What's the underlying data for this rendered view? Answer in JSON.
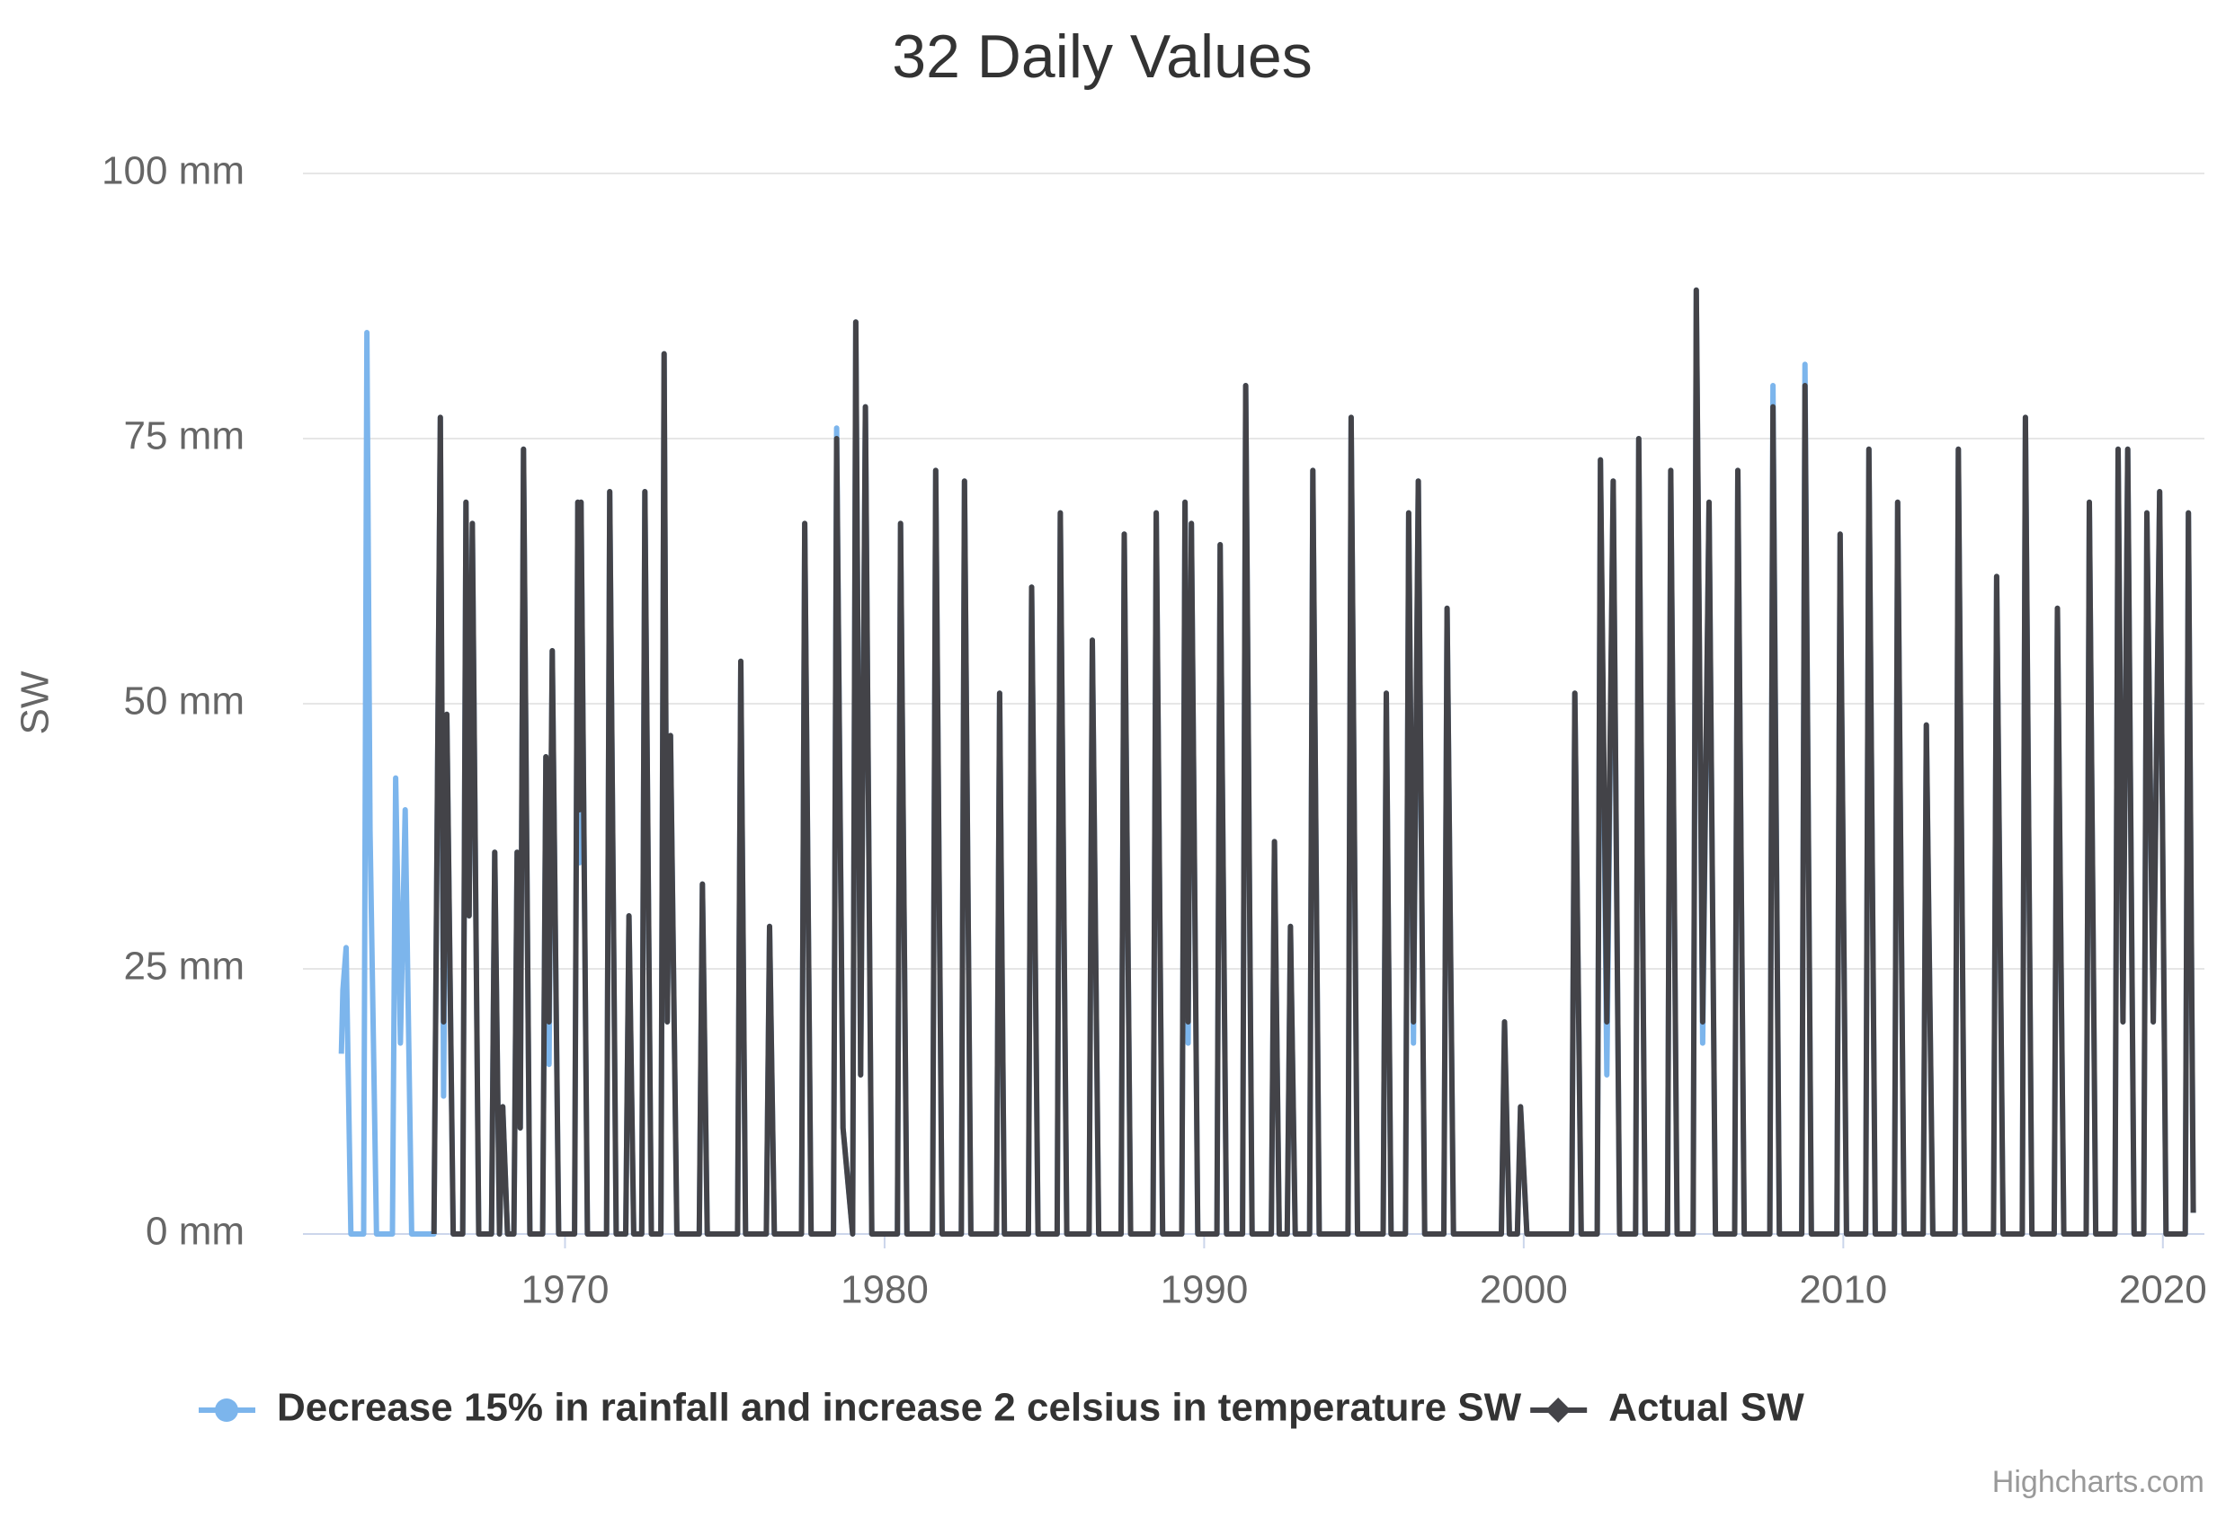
{
  "chart_data": {
    "type": "line",
    "title": "32 Daily Values",
    "y_axis_label": "SW",
    "credits": "Highcharts.com",
    "grid": true,
    "xlim": [
      1961.8,
      2021.3
    ],
    "xticks": [
      1970,
      1980,
      1990,
      2000,
      2010,
      2020
    ],
    "ylim": [
      0,
      100
    ],
    "yticks": [
      {
        "value": 0,
        "label": "0 mm"
      },
      {
        "value": 25,
        "label": "25 mm"
      },
      {
        "value": 50,
        "label": "50 mm"
      },
      {
        "value": 75,
        "label": "75 mm"
      },
      {
        "value": 100,
        "label": "100 mm"
      }
    ],
    "x": [
      1963.0,
      1963.05,
      1963.15,
      1963.3,
      1963.7,
      1963.8,
      1963.9,
      1964.1,
      1964.6,
      1964.7,
      1964.85,
      1965.0,
      1965.2,
      1965.9,
      1966.1,
      1966.2,
      1966.3,
      1966.5,
      1966.8,
      1966.9,
      1967.0,
      1967.1,
      1967.3,
      1967.7,
      1967.8,
      1967.95,
      1968.05,
      1968.2,
      1968.4,
      1968.5,
      1968.6,
      1968.7,
      1968.9,
      1969.3,
      1969.4,
      1969.5,
      1969.6,
      1969.8,
      1970.3,
      1970.4,
      1970.45,
      1970.5,
      1970.7,
      1971.3,
      1971.4,
      1971.6,
      1971.9,
      1972.0,
      1972.15,
      1972.4,
      1972.5,
      1972.7,
      1973.0,
      1973.1,
      1973.2,
      1973.3,
      1973.5,
      1974.2,
      1974.3,
      1974.45,
      1975.4,
      1975.5,
      1975.65,
      1976.3,
      1976.4,
      1976.55,
      1977.4,
      1977.5,
      1977.7,
      1978.4,
      1978.5,
      1978.7,
      1979.0,
      1979.1,
      1979.25,
      1979.4,
      1979.6,
      1980.4,
      1980.5,
      1980.7,
      1981.5,
      1981.6,
      1981.8,
      1982.4,
      1982.5,
      1982.7,
      1983.5,
      1983.6,
      1983.75,
      1984.5,
      1984.6,
      1984.8,
      1985.4,
      1985.5,
      1985.7,
      1986.4,
      1986.5,
      1986.7,
      1987.4,
      1987.5,
      1987.7,
      1988.4,
      1988.5,
      1988.7,
      1989.3,
      1989.4,
      1989.5,
      1989.6,
      1989.8,
      1990.4,
      1990.5,
      1990.7,
      1991.2,
      1991.3,
      1991.5,
      1992.1,
      1992.2,
      1992.35,
      1992.6,
      1992.7,
      1992.85,
      1993.3,
      1993.4,
      1993.6,
      1994.5,
      1994.6,
      1994.8,
      1995.6,
      1995.7,
      1995.85,
      1996.3,
      1996.4,
      1996.55,
      1996.7,
      1996.9,
      1997.5,
      1997.6,
      1997.8,
      1999.3,
      1999.4,
      1999.55,
      1999.8,
      1999.9,
      2000.1,
      2001.5,
      2001.6,
      2001.8,
      2002.3,
      2002.4,
      2002.6,
      2002.8,
      2003.0,
      2003.5,
      2003.6,
      2003.8,
      2004.5,
      2004.6,
      2004.8,
      2005.3,
      2005.4,
      2005.6,
      2005.8,
      2006.0,
      2006.6,
      2006.7,
      2006.9,
      2007.7,
      2007.8,
      2008.0,
      2008.7,
      2008.8,
      2009.0,
      2009.8,
      2009.9,
      2010.1,
      2010.7,
      2010.8,
      2011.0,
      2011.6,
      2011.7,
      2011.9,
      2012.5,
      2012.6,
      2012.8,
      2013.5,
      2013.6,
      2013.8,
      2014.7,
      2014.8,
      2015.0,
      2015.6,
      2015.7,
      2015.9,
      2016.6,
      2016.7,
      2016.9,
      2017.6,
      2017.7,
      2017.9,
      2018.5,
      2018.6,
      2018.75,
      2018.9,
      2019.1,
      2019.4,
      2019.5,
      2019.7,
      2019.9,
      2020.1,
      2020.7,
      2020.8,
      2020.95
    ],
    "series": [
      {
        "name": "Decrease 15% in rainfall and increase 2 celsius in temperature SW",
        "color": "#7cb5ec",
        "marker": "circle",
        "values": [
          17,
          23,
          27,
          0,
          0,
          85,
          38,
          0,
          0,
          43,
          18,
          40,
          0,
          0,
          77,
          13,
          49,
          0,
          0,
          69,
          30,
          67,
          0,
          0,
          36,
          0,
          12,
          0,
          0,
          36,
          10,
          74,
          0,
          0,
          45,
          16,
          55,
          0,
          0,
          69,
          35,
          69,
          0,
          0,
          70,
          0,
          0,
          30,
          0,
          0,
          70,
          0,
          0,
          83,
          20,
          47,
          0,
          0,
          33,
          0,
          0,
          54,
          0,
          0,
          29,
          0,
          0,
          67,
          0,
          0,
          76,
          10,
          0,
          86,
          15,
          78,
          0,
          0,
          67,
          0,
          0,
          72,
          0,
          0,
          71,
          0,
          0,
          51,
          0,
          0,
          61,
          0,
          0,
          68,
          0,
          0,
          56,
          0,
          0,
          66,
          0,
          0,
          68,
          0,
          0,
          69,
          18,
          67,
          0,
          0,
          65,
          0,
          0,
          80,
          0,
          0,
          37,
          0,
          0,
          29,
          0,
          0,
          72,
          0,
          0,
          77,
          0,
          0,
          51,
          0,
          0,
          68,
          18,
          71,
          0,
          0,
          59,
          0,
          0,
          20,
          0,
          0,
          12,
          0,
          0,
          51,
          0,
          0,
          73,
          15,
          71,
          0,
          0,
          75,
          0,
          0,
          72,
          0,
          0,
          89,
          18,
          69,
          0,
          0,
          72,
          0,
          0,
          80,
          0,
          0,
          82,
          0,
          0,
          66,
          0,
          0,
          74,
          0,
          0,
          69,
          0,
          0,
          48,
          0,
          0,
          74,
          0,
          0,
          62,
          0,
          0,
          77,
          0,
          0,
          59,
          0,
          0,
          69,
          0,
          0,
          74,
          20,
          74,
          0,
          0,
          68,
          20,
          70,
          0,
          0,
          68,
          2
        ]
      },
      {
        "name": "Actual SW",
        "color": "#434348",
        "marker": "diamond",
        "values": [
          null,
          null,
          null,
          null,
          null,
          null,
          null,
          null,
          null,
          null,
          null,
          null,
          null,
          0,
          77,
          20,
          49,
          0,
          0,
          69,
          30,
          67,
          0,
          0,
          36,
          0,
          12,
          0,
          0,
          36,
          10,
          74,
          0,
          0,
          45,
          20,
          55,
          0,
          0,
          69,
          40,
          69,
          0,
          0,
          70,
          0,
          0,
          30,
          0,
          0,
          70,
          0,
          0,
          83,
          20,
          47,
          0,
          0,
          33,
          0,
          0,
          54,
          0,
          0,
          29,
          0,
          0,
          67,
          0,
          0,
          75,
          10,
          0,
          86,
          15,
          78,
          0,
          0,
          67,
          0,
          0,
          72,
          0,
          0,
          71,
          0,
          0,
          51,
          0,
          0,
          61,
          0,
          0,
          68,
          0,
          0,
          56,
          0,
          0,
          66,
          0,
          0,
          68,
          0,
          0,
          69,
          20,
          67,
          0,
          0,
          65,
          0,
          0,
          80,
          0,
          0,
          37,
          0,
          0,
          29,
          0,
          0,
          72,
          0,
          0,
          77,
          0,
          0,
          51,
          0,
          0,
          68,
          20,
          71,
          0,
          0,
          59,
          0,
          0,
          20,
          0,
          0,
          12,
          0,
          0,
          51,
          0,
          0,
          73,
          20,
          71,
          0,
          0,
          75,
          0,
          0,
          72,
          0,
          0,
          89,
          20,
          69,
          0,
          0,
          72,
          0,
          0,
          78,
          0,
          0,
          80,
          0,
          0,
          66,
          0,
          0,
          74,
          0,
          0,
          69,
          0,
          0,
          48,
          0,
          0,
          74,
          0,
          0,
          62,
          0,
          0,
          77,
          0,
          0,
          59,
          0,
          0,
          69,
          0,
          0,
          74,
          20,
          74,
          0,
          0,
          68,
          20,
          70,
          0,
          0,
          68,
          2
        ]
      }
    ]
  }
}
